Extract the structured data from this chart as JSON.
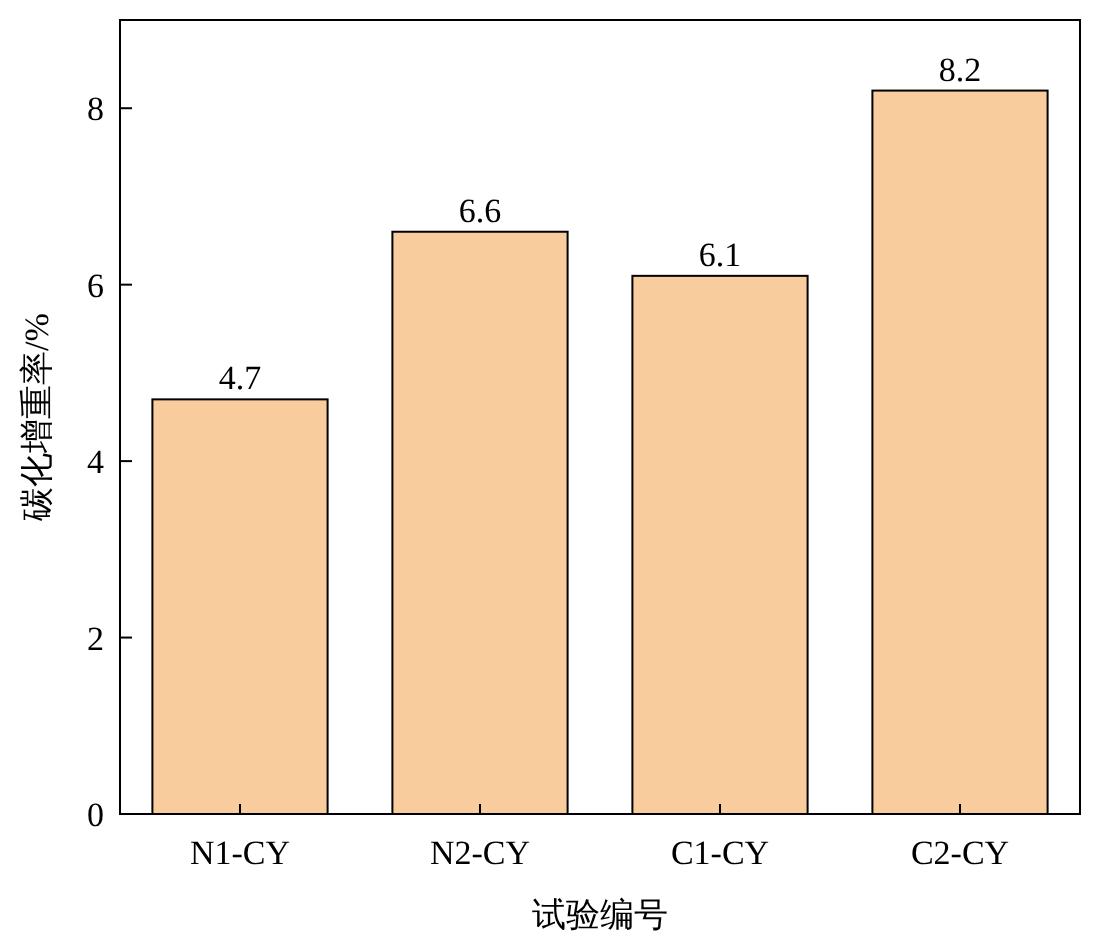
{
  "chart_data": {
    "type": "bar",
    "xlabel": "试验编号",
    "ylabel": "碳化增重率/%",
    "categories": [
      "N1-CY",
      "N2-CY",
      "C1-CY",
      "C2-CY"
    ],
    "values": [
      4.7,
      6.6,
      6.1,
      8.2
    ],
    "color": "#f9cc9d",
    "ylim": [
      0,
      9
    ],
    "yticks": [
      0,
      2,
      4,
      6,
      8
    ],
    "data_labels": true
  }
}
